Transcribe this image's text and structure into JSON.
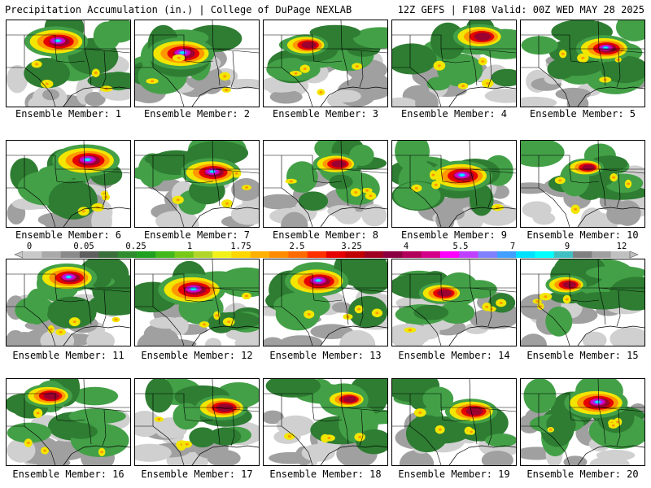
{
  "header": {
    "title_left": "Precipitation Accumulation (in.) | College of DuPage NEXLAB",
    "title_right": "12Z GEFS | F108 Valid: 00Z WED MAY 28 2025"
  },
  "colorbar": {
    "labels": [
      "0",
      "0.05",
      "0.25",
      "1",
      "1.75",
      "2.5",
      "3.25",
      "4",
      "5.5",
      "7",
      "9",
      "12"
    ],
    "colors": [
      "#c8c8c8",
      "#a9a9a9",
      "#8a8a8a",
      "#5f5f5f",
      "#3a6e3a",
      "#2e8b2e",
      "#1fa01f",
      "#42b81b",
      "#78c81a",
      "#b0d62a",
      "#f2f21a",
      "#ffd700",
      "#ffb000",
      "#ff8c00",
      "#ff6a00",
      "#ff3000",
      "#e60000",
      "#c00000",
      "#a00020",
      "#8b0040",
      "#b0005a",
      "#d4008a",
      "#ff00ff",
      "#c040ff",
      "#8080ff",
      "#40a0ff",
      "#00e0ff",
      "#00ffff",
      "#40c0c0",
      "#808080",
      "#a0a0a0",
      "#c0c0c0"
    ],
    "palette_fill": {
      "light_gray": "#d0d0d0",
      "gray": "#a0a0a0",
      "dark_green": "#2e7d32",
      "green": "#43a047",
      "yellow": "#f2e600",
      "orange": "#ff9800",
      "red": "#e60000",
      "dark_red": "#9b0030",
      "magenta": "#d400c0",
      "purple": "#8040ff",
      "cyan": "#00e8ff"
    }
  },
  "members": [
    {
      "label": "Ensemble Member: 1",
      "intensity": 0.85
    },
    {
      "label": "Ensemble Member: 2",
      "intensity": 0.9
    },
    {
      "label": "Ensemble Member: 3",
      "intensity": 0.6
    },
    {
      "label": "Ensemble Member: 4",
      "intensity": 0.7
    },
    {
      "label": "Ensemble Member: 5",
      "intensity": 0.75
    },
    {
      "label": "Ensemble Member: 6",
      "intensity": 0.9
    },
    {
      "label": "Ensemble Member: 7",
      "intensity": 0.8
    },
    {
      "label": "Ensemble Member: 8",
      "intensity": 0.6
    },
    {
      "label": "Ensemble Member: 9",
      "intensity": 0.85
    },
    {
      "label": "Ensemble Member: 10",
      "intensity": 0.5
    },
    {
      "label": "Ensemble Member: 11",
      "intensity": 0.8
    },
    {
      "label": "Ensemble Member: 12",
      "intensity": 0.9
    },
    {
      "label": "Ensemble Member: 13",
      "intensity": 0.85
    },
    {
      "label": "Ensemble Member: 14",
      "intensity": 0.6
    },
    {
      "label": "Ensemble Member: 15",
      "intensity": 0.55
    },
    {
      "label": "Ensemble Member: 16",
      "intensity": 0.65
    },
    {
      "label": "Ensemble Member: 17",
      "intensity": 0.7
    },
    {
      "label": "Ensemble Member: 18",
      "intensity": 0.55
    },
    {
      "label": "Ensemble Member: 19",
      "intensity": 0.7
    },
    {
      "label": "Ensemble Member: 20",
      "intensity": 0.85
    }
  ]
}
